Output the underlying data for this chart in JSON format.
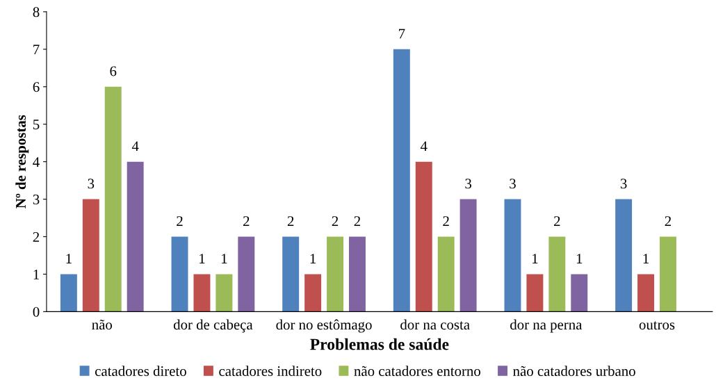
{
  "chart_data": {
    "type": "bar",
    "xlabel": "Problemas de saúde",
    "ylabel": "Nº de respostas",
    "categories": [
      "não",
      "dor de cabeça",
      "dor no estômago",
      "dor na costa",
      "dor na perna",
      "outros"
    ],
    "series": [
      {
        "name": "catadores direto",
        "color": "#4f81bd",
        "values": [
          1,
          2,
          2,
          7,
          3,
          3
        ]
      },
      {
        "name": "catadores indireto",
        "color": "#c0504d",
        "values": [
          3,
          1,
          1,
          4,
          1,
          1
        ]
      },
      {
        "name": "não catadores entorno",
        "color": "#9bbb59",
        "values": [
          6,
          1,
          2,
          2,
          2,
          2
        ]
      },
      {
        "name": "não catadores urbano",
        "color": "#8064a2",
        "values": [
          4,
          2,
          2,
          3,
          1,
          null
        ]
      }
    ],
    "ylim": [
      0,
      8
    ],
    "yticks": [
      0,
      1,
      2,
      3,
      4,
      5,
      6,
      7,
      8
    ],
    "data_labels": true,
    "grid": false,
    "legend": "bottom"
  }
}
